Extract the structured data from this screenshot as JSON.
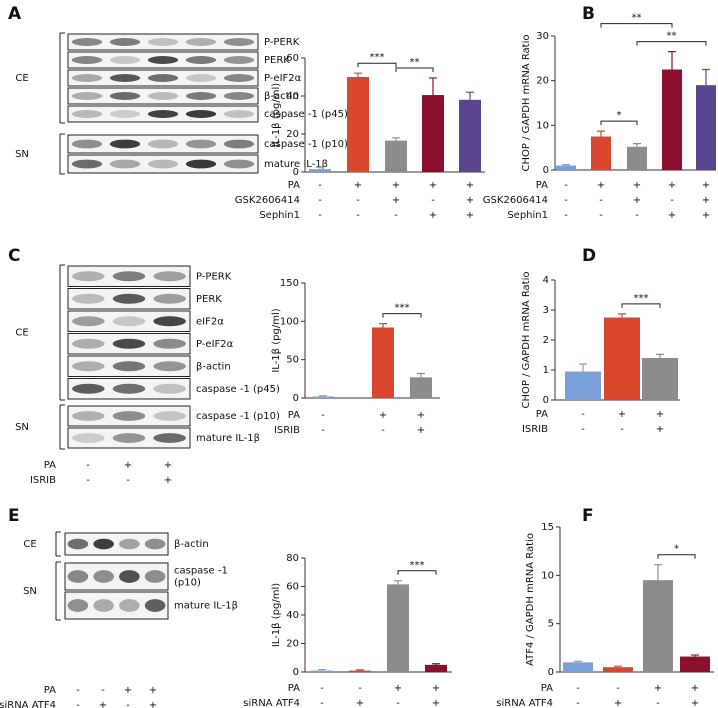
{
  "panel_letters": [
    "A",
    "B",
    "C",
    "D",
    "E",
    "F"
  ],
  "blots": [
    {
      "groups": [
        {
          "name": "CE",
          "rows": [
            "P-PERK",
            "PERK",
            "P-eIF2α",
            "β-actin",
            "caspase -1 (p45)"
          ]
        },
        {
          "name": "SN",
          "rows": [
            "caspase -1 (p10)",
            "mature IL-1β"
          ]
        }
      ]
    },
    {
      "groups": [
        {
          "name": "CE",
          "rows": [
            "P-PERK",
            "PERK",
            "eIF2α",
            "P-eIF2α",
            "β-actin",
            "caspase -1 (p45)"
          ]
        },
        {
          "name": "SN",
          "rows": [
            "caspase -1 (p10)",
            "mature IL-1β"
          ]
        }
      ],
      "conditions": [
        {
          "name": "PA",
          "signs": [
            "-",
            "+",
            "+"
          ]
        },
        {
          "name": "ISRIB",
          "signs": [
            "-",
            "-",
            "+"
          ]
        }
      ]
    },
    {
      "groups": [
        {
          "name": "CE",
          "rows": [
            "β-actin"
          ]
        },
        {
          "name": "SN",
          "rows": [
            [
              "caspase -1",
              "(p10)"
            ],
            "mature IL-1β"
          ]
        }
      ],
      "conditions": [
        {
          "name": "PA",
          "signs": [
            "-",
            "-",
            "+",
            "+"
          ]
        },
        {
          "name": "siRNA ATF4",
          "signs": [
            "-",
            "+",
            "-",
            "+"
          ]
        }
      ]
    }
  ],
  "chart_data": [
    {
      "type": "bar",
      "ylabel": "IL-1β (pg/ml)",
      "values": [
        1.5,
        50,
        16.5,
        40.5,
        38
      ],
      "errors": [
        1,
        2,
        1.5,
        9,
        4
      ],
      "colors": [
        "#7b9fd8",
        "#d9472e",
        "#8c8c8c",
        "#8c0f2e",
        "#5a468f"
      ],
      "ylim": [
        0,
        60
      ],
      "yticks": [
        0,
        20,
        40,
        60
      ],
      "conditions": [
        {
          "name": "PA",
          "signs": [
            "-",
            "+",
            "+",
            "+",
            "+"
          ]
        },
        {
          "name": "GSK2606414",
          "signs": [
            "-",
            "-",
            "+",
            "-",
            "+"
          ]
        },
        {
          "name": "Sephin1",
          "signs": [
            "-",
            "-",
            "-",
            "+",
            "+"
          ]
        }
      ],
      "significance": [
        {
          "label": "***",
          "bars": [
            1,
            2
          ]
        },
        {
          "label": "**",
          "bars": [
            2,
            3
          ]
        }
      ]
    },
    {
      "type": "bar",
      "ylabel": "CHOP / GAPDH mRNA Ratio",
      "values": [
        1,
        7.5,
        5.2,
        22.5,
        19
      ],
      "errors": [
        0.2,
        1.2,
        0.7,
        4,
        3.5
      ],
      "colors": [
        "#7b9fd8",
        "#d9472e",
        "#8c8c8c",
        "#8c0f2e",
        "#5a468f"
      ],
      "ylim": [
        0,
        30
      ],
      "yticks": [
        0,
        10,
        20,
        30
      ],
      "conditions": [
        {
          "name": "PA",
          "signs": [
            "-",
            "+",
            "+",
            "+",
            "+"
          ]
        },
        {
          "name": "GSK2606414",
          "signs": [
            "-",
            "-",
            "+",
            "-",
            "+"
          ]
        },
        {
          "name": "Sephin1",
          "signs": [
            "-",
            "-",
            "-",
            "+",
            "+"
          ]
        }
      ],
      "significance": [
        {
          "label": "*",
          "bars": [
            1,
            2
          ]
        },
        {
          "label": "**",
          "bars": [
            2,
            4
          ]
        },
        {
          "label": "**",
          "bars": [
            1,
            3
          ]
        }
      ]
    },
    {
      "type": "bar",
      "ylabel": "IL-1β (pg/ml)",
      "values": [
        2,
        92,
        27
      ],
      "errors": [
        1,
        5,
        5
      ],
      "colors": [
        "#7b9fd8",
        "#d9472e",
        "#8c8c8c"
      ],
      "ylim": [
        0,
        150
      ],
      "yticks": [
        0,
        50,
        100,
        150
      ],
      "conditions": [
        {
          "name": "PA",
          "signs": [
            "-",
            "+",
            "+"
          ]
        },
        {
          "name": "ISRIB",
          "signs": [
            "-",
            "-",
            "+"
          ]
        }
      ],
      "significance": [
        {
          "label": "***",
          "bars": [
            1,
            2
          ]
        }
      ]
    },
    {
      "type": "bar",
      "ylabel": "CHOP / GAPDH mRNA Ratio",
      "values": [
        0.95,
        2.75,
        1.4
      ],
      "errors": [
        0.25,
        0.12,
        0.12
      ],
      "colors": [
        "#7b9fd8",
        "#d9472e",
        "#8c8c8c"
      ],
      "ylim": [
        0,
        4
      ],
      "yticks": [
        0,
        1,
        2,
        3,
        4
      ],
      "conditions": [
        {
          "name": "PA",
          "signs": [
            "-",
            "+",
            "+"
          ]
        },
        {
          "name": "ISRIB",
          "signs": [
            "-",
            "-",
            "+"
          ]
        }
      ],
      "significance": [
        {
          "label": "***",
          "bars": [
            1,
            2
          ]
        }
      ]
    },
    {
      "type": "bar",
      "ylabel": "IL-1β (pg/ml)",
      "values": [
        1,
        1,
        61.5,
        5
      ],
      "errors": [
        0.7,
        0.6,
        2.5,
        0.8
      ],
      "colors": [
        "#7b9fd8",
        "#d9472e",
        "#8c8c8c",
        "#8c0f2e"
      ],
      "ylim": [
        0,
        80
      ],
      "yticks": [
        0,
        20,
        40,
        60,
        80
      ],
      "conditions": [
        {
          "name": "PA",
          "signs": [
            "-",
            "-",
            "+",
            "+"
          ]
        },
        {
          "name": "siRNA ATF4",
          "signs": [
            "-",
            "+",
            "-",
            "+"
          ]
        }
      ],
      "significance": [
        {
          "label": "***",
          "bars": [
            2,
            3
          ]
        }
      ]
    },
    {
      "type": "bar",
      "ylabel": "ATF4 / GAPDH mRNA Ratio",
      "values": [
        1,
        0.5,
        9.5,
        1.6
      ],
      "errors": [
        0.1,
        0.1,
        1.6,
        0.15
      ],
      "colors": [
        "#7b9fd8",
        "#d9472e",
        "#8c8c8c",
        "#8c0f2e"
      ],
      "ylim": [
        0,
        15
      ],
      "yticks": [
        0,
        5,
        10,
        15
      ],
      "conditions": [
        {
          "name": "PA",
          "signs": [
            "-",
            "-",
            "+",
            "+"
          ]
        },
        {
          "name": "siRNA ATF4",
          "signs": [
            "-",
            "+",
            "-",
            "+"
          ]
        }
      ],
      "significance": [
        {
          "label": "*",
          "bars": [
            2,
            3
          ]
        }
      ]
    }
  ]
}
